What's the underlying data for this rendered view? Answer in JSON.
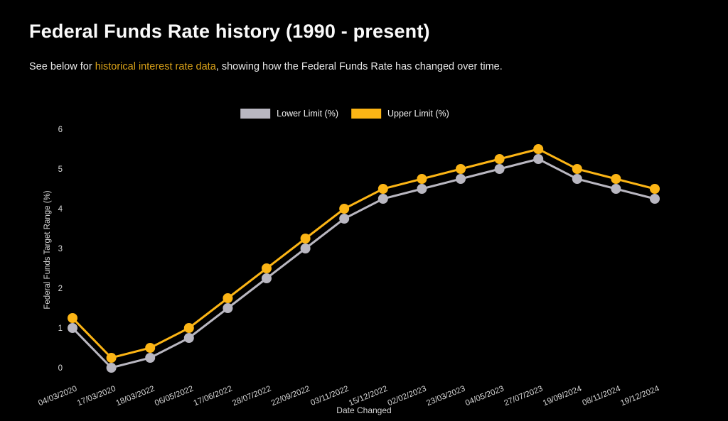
{
  "header": {
    "title": "Federal Funds Rate history (1990 - present)",
    "subtitle_prefix": "See below for ",
    "link_text": "historical interest rate data",
    "subtitle_suffix": ", showing how the Federal Funds Rate has changed over time.",
    "link_color": "#d9a118",
    "title_color": "#fafafa",
    "background_color": "#000000"
  },
  "chart_data": {
    "type": "line",
    "x": [
      "04/03/2020",
      "17/03/2020",
      "18/03/2022",
      "06/05/2022",
      "17/06/2022",
      "28/07/2022",
      "22/09/2022",
      "03/11/2022",
      "15/12/2022",
      "02/02/2023",
      "23/03/2023",
      "04/05/2023",
      "27/07/2023",
      "19/09/2024",
      "08/11/2024",
      "19/12/2024"
    ],
    "series": [
      {
        "id": "lower-limit",
        "name": "Lower Limit (%)",
        "color": "#b9b7c1",
        "values": [
          1.0,
          0.0,
          0.25,
          0.75,
          1.5,
          2.25,
          3.0,
          3.75,
          4.25,
          4.5,
          4.75,
          5.0,
          5.25,
          4.75,
          4.5,
          4.25
        ]
      },
      {
        "id": "upper-limit",
        "name": "Upper Limit (%)",
        "color": "#fcb515",
        "values": [
          1.25,
          0.25,
          0.5,
          1.0,
          1.75,
          2.5,
          3.25,
          4.0,
          4.5,
          4.75,
          5.0,
          5.25,
          5.5,
          5.0,
          4.75,
          4.5
        ]
      }
    ],
    "xlabel": "Date Changed",
    "ylabel": "Federal Funds Target Range (%)",
    "ylim": [
      0,
      6
    ],
    "yticks": [
      0,
      1,
      2,
      3,
      4,
      5,
      6
    ],
    "grid": false,
    "legend_position": "top-center"
  }
}
